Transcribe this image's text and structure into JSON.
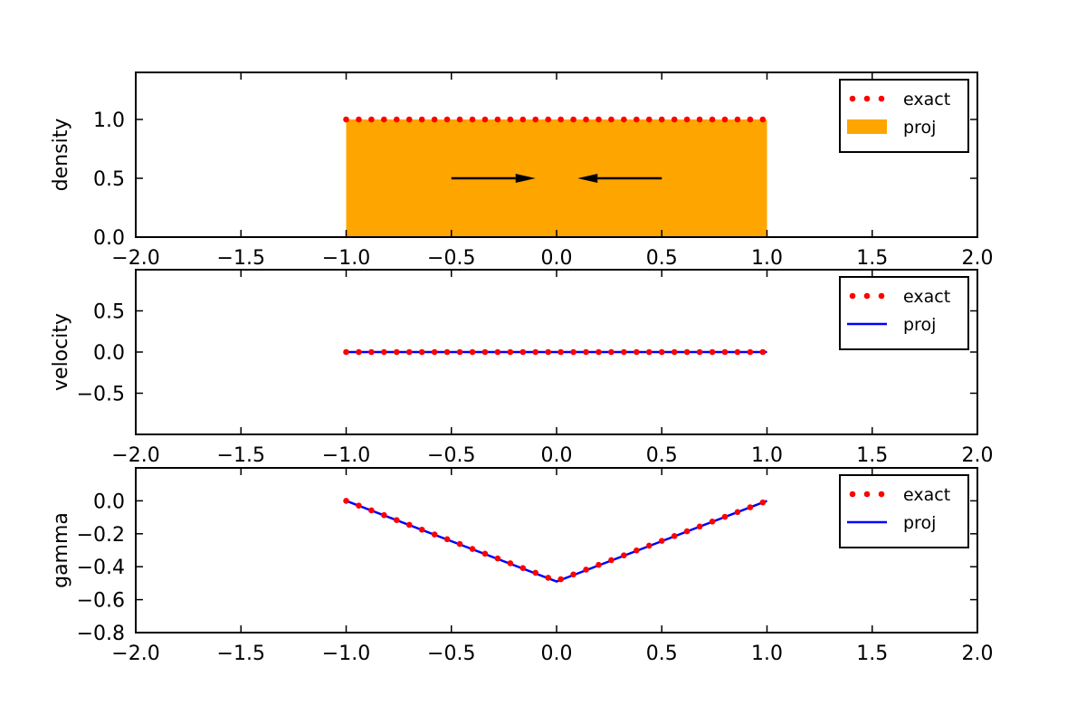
{
  "chart_data": [
    {
      "type": "area",
      "ylabel": "density",
      "xlim": [
        -2.0,
        2.0
      ],
      "ylim": [
        0.0,
        1.4
      ],
      "xticks": [
        "−2.0",
        "−1.5",
        "−1.0",
        "−0.5",
        "0.0",
        "0.5",
        "1.0",
        "1.5",
        "2.0"
      ],
      "yticks": [
        "0.0",
        "0.5",
        "1.0"
      ],
      "legend": {
        "position": "top-right",
        "entries": [
          "exact",
          "proj"
        ]
      },
      "series": [
        {
          "name": "exact",
          "style": "dots",
          "color": "#ff0000",
          "x": [
            -1.0,
            -0.94,
            -0.88,
            -0.82,
            -0.76,
            -0.7,
            -0.64,
            -0.58,
            -0.52,
            -0.46,
            -0.4,
            -0.34,
            -0.28,
            -0.22,
            -0.16,
            -0.1,
            -0.04,
            0.02,
            0.08,
            0.14,
            0.2,
            0.26,
            0.32,
            0.38,
            0.44,
            0.5,
            0.56,
            0.62,
            0.68,
            0.74,
            0.8,
            0.86,
            0.92,
            0.98
          ],
          "y": [
            1,
            1,
            1,
            1,
            1,
            1,
            1,
            1,
            1,
            1,
            1,
            1,
            1,
            1,
            1,
            1,
            1,
            1,
            1,
            1,
            1,
            1,
            1,
            1,
            1,
            1,
            1,
            1,
            1,
            1,
            1,
            1,
            1,
            1
          ]
        },
        {
          "name": "proj",
          "style": "fill",
          "color": "#ffa500",
          "x": [
            -1.0,
            1.0
          ],
          "y": [
            1.0,
            1.0
          ]
        }
      ],
      "arrows": [
        {
          "from": [
            -0.5,
            0.5
          ],
          "to": [
            -0.1,
            0.5
          ]
        },
        {
          "from": [
            0.5,
            0.5
          ],
          "to": [
            0.1,
            0.5
          ]
        }
      ]
    },
    {
      "type": "line",
      "ylabel": "velocity",
      "xlim": [
        -2.0,
        2.0
      ],
      "ylim": [
        -1.0,
        1.0
      ],
      "xticks": [
        "−2.0",
        "−1.5",
        "−1.0",
        "−0.5",
        "0.0",
        "0.5",
        "1.0",
        "1.5",
        "2.0"
      ],
      "yticks": [
        "0.5",
        "0.0",
        "−0.5"
      ],
      "ytick_values": [
        0.5,
        0.0,
        -0.5
      ],
      "legend": {
        "position": "top-right",
        "entries": [
          "exact",
          "proj"
        ]
      },
      "series": [
        {
          "name": "exact",
          "style": "dots",
          "color": "#ff0000",
          "x": [
            -1.0,
            -0.94,
            -0.88,
            -0.82,
            -0.76,
            -0.7,
            -0.64,
            -0.58,
            -0.52,
            -0.46,
            -0.4,
            -0.34,
            -0.28,
            -0.22,
            -0.16,
            -0.1,
            -0.04,
            0.02,
            0.08,
            0.14,
            0.2,
            0.26,
            0.32,
            0.38,
            0.44,
            0.5,
            0.56,
            0.62,
            0.68,
            0.74,
            0.8,
            0.86,
            0.92,
            0.98
          ],
          "y": [
            0,
            0,
            0,
            0,
            0,
            0,
            0,
            0,
            0,
            0,
            0,
            0,
            0,
            0,
            0,
            0,
            0,
            0,
            0,
            0,
            0,
            0,
            0,
            0,
            0,
            0,
            0,
            0,
            0,
            0,
            0,
            0,
            0,
            0
          ]
        },
        {
          "name": "proj",
          "style": "line",
          "color": "#0000ff",
          "x": [
            -1.0,
            1.0
          ],
          "y": [
            0.0,
            0.0
          ]
        }
      ]
    },
    {
      "type": "line",
      "ylabel": "gamma",
      "xlim": [
        -2.0,
        2.0
      ],
      "ylim": [
        -0.8,
        0.2
      ],
      "xticks": [
        "−2.0",
        "−1.5",
        "−1.0",
        "−0.5",
        "0.0",
        "0.5",
        "1.0",
        "1.5",
        "2.0"
      ],
      "yticks": [
        "0.0",
        "−0.2",
        "−0.4",
        "−0.6",
        "−0.8"
      ],
      "ytick_values": [
        0.0,
        -0.2,
        -0.4,
        -0.6,
        -0.8
      ],
      "legend": {
        "position": "top-right",
        "entries": [
          "exact",
          "proj"
        ]
      },
      "series": [
        {
          "name": "exact",
          "style": "dots",
          "color": "#ff0000",
          "x": [
            -1.0,
            -0.94,
            -0.88,
            -0.82,
            -0.76,
            -0.7,
            -0.64,
            -0.58,
            -0.52,
            -0.46,
            -0.4,
            -0.34,
            -0.28,
            -0.22,
            -0.16,
            -0.1,
            -0.04,
            0.02,
            0.08,
            0.14,
            0.2,
            0.26,
            0.32,
            0.38,
            0.44,
            0.5,
            0.56,
            0.62,
            0.68,
            0.74,
            0.8,
            0.86,
            0.92,
            0.98
          ],
          "y": [
            0.0,
            -0.029,
            -0.058,
            -0.087,
            -0.117,
            -0.146,
            -0.175,
            -0.204,
            -0.233,
            -0.262,
            -0.292,
            -0.321,
            -0.35,
            -0.379,
            -0.408,
            -0.437,
            -0.467,
            -0.476,
            -0.447,
            -0.418,
            -0.389,
            -0.36,
            -0.331,
            -0.301,
            -0.272,
            -0.243,
            -0.214,
            -0.185,
            -0.156,
            -0.126,
            -0.097,
            -0.068,
            -0.039,
            -0.01
          ]
        },
        {
          "name": "proj",
          "style": "line",
          "color": "#0000ff",
          "x": [
            -1.0,
            0.0,
            1.0
          ],
          "y": [
            0.0,
            -0.49,
            0.0
          ]
        }
      ]
    }
  ]
}
